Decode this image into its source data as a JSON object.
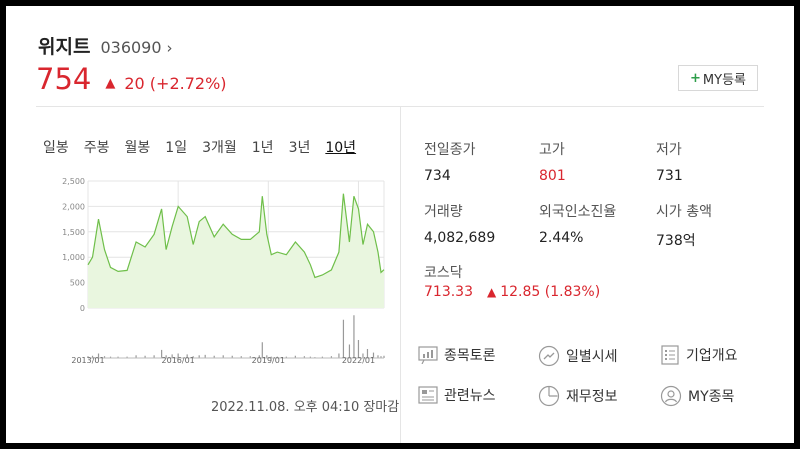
{
  "stock": {
    "name": "위지트",
    "code": "036090",
    "chevron": "›",
    "price": "754",
    "change": "20 (+2.72%)",
    "up_color": "#d9262e"
  },
  "my_button": {
    "plus": "+",
    "label": "MY등록"
  },
  "periods": [
    {
      "label": "일봉",
      "active": false
    },
    {
      "label": "주봉",
      "active": false
    },
    {
      "label": "월봉",
      "active": false
    },
    {
      "label": "1일",
      "active": false
    },
    {
      "label": "3개월",
      "active": false
    },
    {
      "label": "1년",
      "active": false
    },
    {
      "label": "3년",
      "active": false
    },
    {
      "label": "10년",
      "active": true
    }
  ],
  "timestamp": "2022.11.08. 오후 04:10 장마감",
  "stats": {
    "prev_close": {
      "label": "전일종가",
      "value": "734"
    },
    "high": {
      "label": "고가",
      "value": "801"
    },
    "low": {
      "label": "저가",
      "value": "731"
    },
    "volume": {
      "label": "거래량",
      "value": "4,082,689"
    },
    "foreign_rate": {
      "label": "외국인소진율",
      "value": "2.44%"
    },
    "market_cap": {
      "label": "시가 총액",
      "value": "738억"
    }
  },
  "index": {
    "name": "코스닥",
    "value": "713.33",
    "change": "12.85 (1.83%)"
  },
  "links": {
    "discussion": "종목토론",
    "daily_price": "일별시세",
    "company_info": "기업개요",
    "news": "관련뉴스",
    "financials": "재무정보",
    "my_stocks": "MY종목"
  },
  "chart_data": {
    "type": "area",
    "y_ticks": [
      "2,500",
      "2,000",
      "1,500",
      "1,000",
      "500",
      "0"
    ],
    "ylim": [
      0,
      2500
    ],
    "x_ticks": [
      "2013/01",
      "2016/01",
      "2019/01",
      "2022/01"
    ],
    "x_range": [
      2013.0,
      2022.85
    ],
    "x": [
      2013.0,
      2013.15,
      2013.35,
      2013.55,
      2013.75,
      2014.0,
      2014.3,
      2014.6,
      2014.9,
      2015.2,
      2015.45,
      2015.6,
      2015.8,
      2016.0,
      2016.3,
      2016.5,
      2016.7,
      2016.9,
      2017.2,
      2017.5,
      2017.8,
      2018.1,
      2018.4,
      2018.7,
      2018.8,
      2018.95,
      2019.1,
      2019.3,
      2019.6,
      2019.9,
      2020.2,
      2020.4,
      2020.55,
      2020.8,
      2021.1,
      2021.35,
      2021.5,
      2021.7,
      2021.85,
      2022.0,
      2022.15,
      2022.3,
      2022.5,
      2022.65,
      2022.75,
      2022.85
    ],
    "values": [
      850,
      1000,
      1750,
      1150,
      800,
      720,
      740,
      1300,
      1200,
      1450,
      1950,
      1150,
      1600,
      2000,
      1800,
      1250,
      1700,
      1800,
      1400,
      1650,
      1450,
      1350,
      1350,
      1500,
      2200,
      1450,
      1050,
      1100,
      1050,
      1300,
      1100,
      850,
      600,
      650,
      750,
      1100,
      2250,
      1300,
      2200,
      1950,
      1250,
      1650,
      1500,
      1100,
      700,
      754
    ],
    "volume": [
      0.04,
      0.05,
      0.1,
      0.04,
      0.03,
      0.03,
      0.03,
      0.06,
      0.05,
      0.06,
      0.18,
      0.06,
      0.08,
      0.1,
      0.08,
      0.04,
      0.06,
      0.07,
      0.05,
      0.06,
      0.05,
      0.04,
      0.04,
      0.06,
      0.35,
      0.06,
      0.03,
      0.03,
      0.03,
      0.05,
      0.04,
      0.03,
      0.02,
      0.03,
      0.04,
      0.1,
      0.85,
      0.3,
      0.95,
      0.4,
      0.1,
      0.2,
      0.12,
      0.06,
      0.04,
      0.05
    ],
    "line_color": "#6fbf4a",
    "fill_color": "#e9f6df",
    "grid": true
  }
}
